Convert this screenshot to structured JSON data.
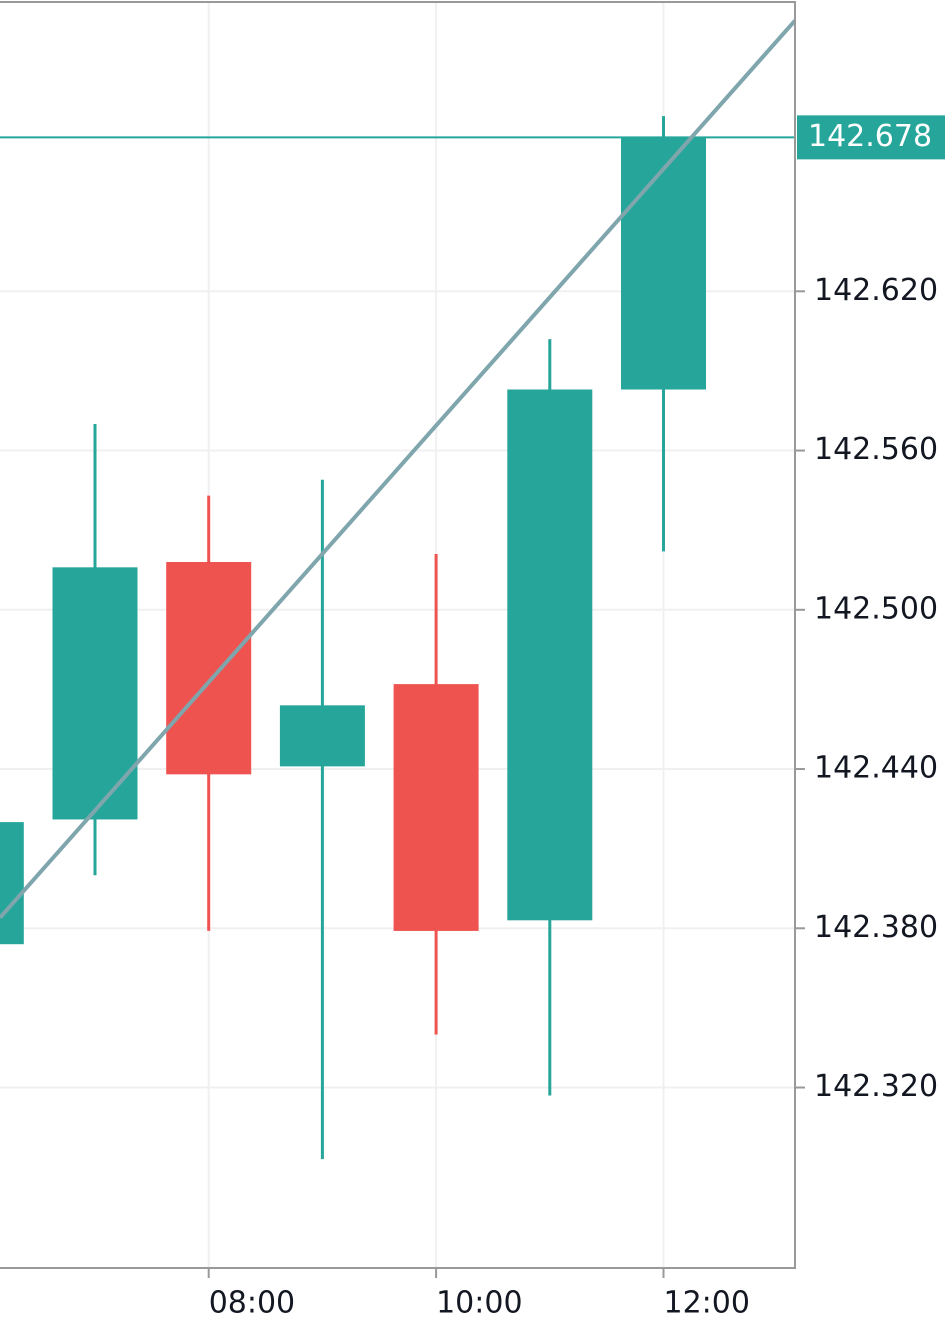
{
  "chart_data": {
    "type": "candlestick",
    "categories": [
      null,
      null,
      "08:00",
      null,
      "10:00",
      null,
      "12:00"
    ],
    "open": [
      142.374,
      142.421,
      142.518,
      142.441,
      142.472,
      142.383,
      142.583
    ],
    "high": [
      142.42,
      142.57,
      142.543,
      142.549,
      142.521,
      142.602,
      142.686
    ],
    "low": [
      142.374,
      142.4,
      142.379,
      142.293,
      142.34,
      142.317,
      142.522
    ],
    "close": [
      142.42,
      142.516,
      142.438,
      142.464,
      142.379,
      142.583,
      142.678
    ],
    "up_color": "#26a69a",
    "down_color": "#ef5350",
    "ylim": [
      142.252,
      142.729
    ],
    "yticks": [
      {
        "value": 142.32,
        "label": "142.320"
      },
      {
        "value": 142.38,
        "label": "142.380"
      },
      {
        "value": 142.44,
        "label": "142.440"
      },
      {
        "value": 142.5,
        "label": "142.500"
      },
      {
        "value": 142.56,
        "label": "142.560"
      },
      {
        "value": 142.62,
        "label": "142.620"
      }
    ],
    "grid": true,
    "last_price": 142.678,
    "trend_line": {
      "color": "#7fa5ad",
      "values": [
        142.384,
        142.722
      ]
    }
  }
}
